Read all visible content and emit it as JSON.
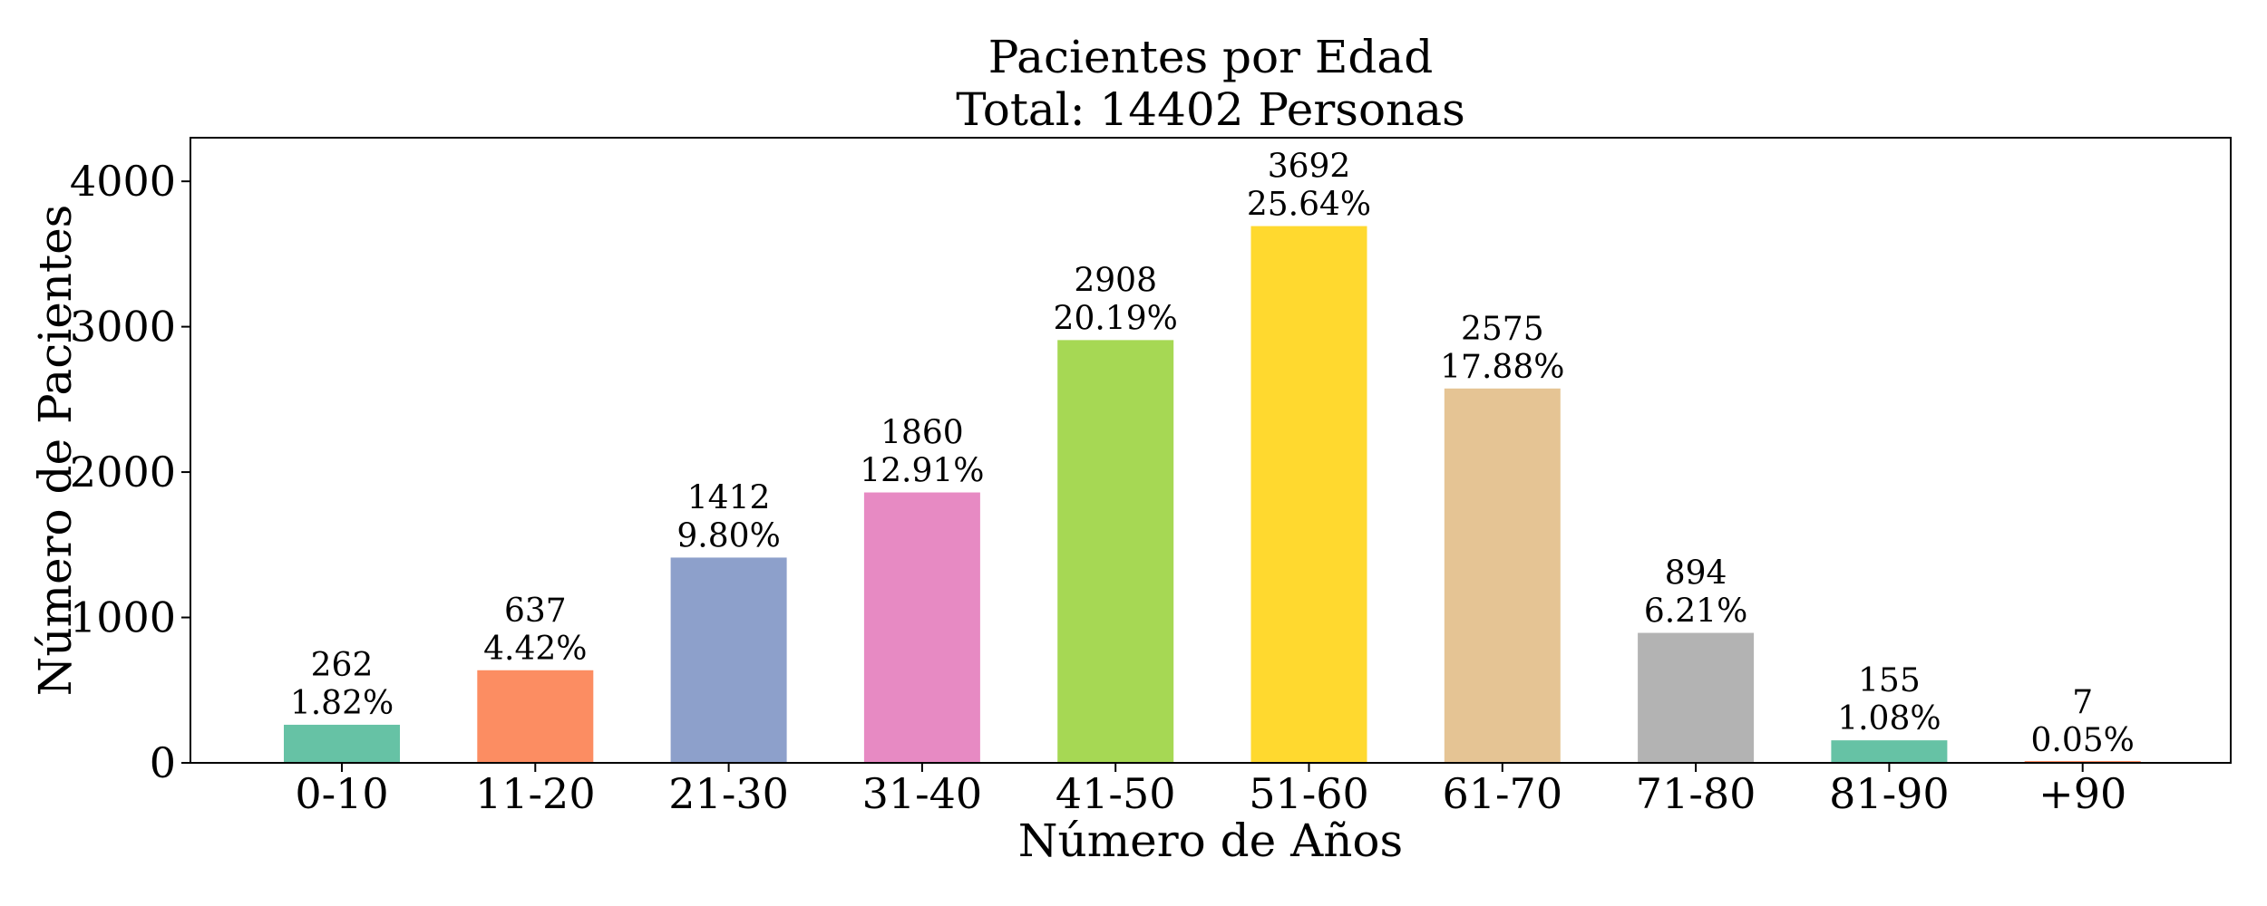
{
  "chart_data": {
    "type": "bar",
    "title": "Pacientes por Edad",
    "subtitle": "Total: 14402 Personas",
    "xlabel": "Número de Años",
    "ylabel": "Número de Pacientes",
    "categories": [
      "0-10",
      "11-20",
      "21-30",
      "31-40",
      "41-50",
      "51-60",
      "61-70",
      "71-80",
      "81-90",
      "+90"
    ],
    "values": [
      262,
      637,
      1412,
      1860,
      2908,
      3692,
      2575,
      894,
      155,
      7
    ],
    "percent_labels": [
      "1.82%",
      "4.42%",
      "9.80%",
      "12.91%",
      "20.19%",
      "25.64%",
      "17.88%",
      "6.21%",
      "1.08%",
      "0.05%"
    ],
    "colors": [
      "#66c2a5",
      "#fc8d62",
      "#8da0cb",
      "#e78ac3",
      "#a6d854",
      "#ffd92f",
      "#e5c494",
      "#b3b3b3",
      "#66c2a5",
      "#fc8d62"
    ],
    "ylim": [
      0,
      4300
    ],
    "yticks": [
      "0",
      "1000",
      "2000",
      "3000",
      "4000"
    ],
    "grid": false
  }
}
